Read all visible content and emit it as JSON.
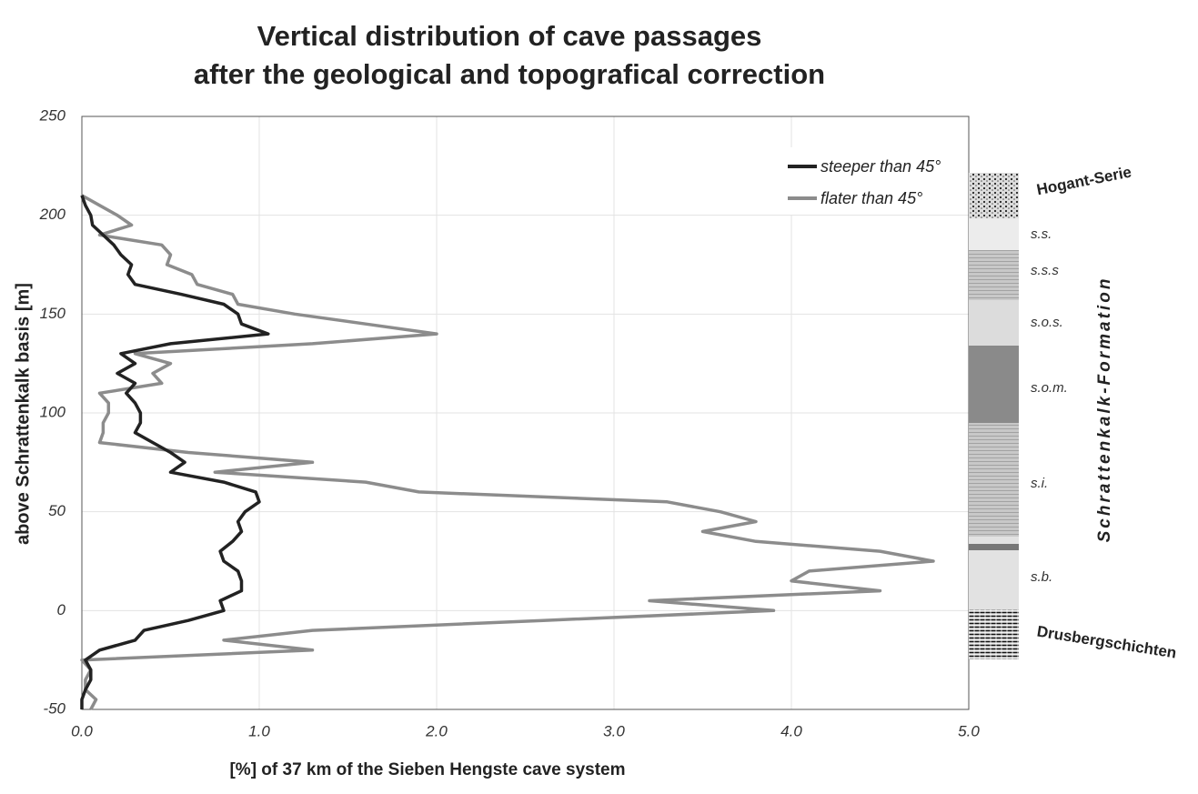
{
  "chart_data": {
    "type": "line",
    "orientation": "horizontal",
    "title": [
      "Vertical distribution of cave passages",
      "after the geological and topografical correction"
    ],
    "xlabel": "[%] of 37 km of the Sieben Hengste cave system",
    "ylabel": "above Schrattenkalk basis [m]",
    "y": [
      210,
      205,
      200,
      195,
      190,
      185,
      180,
      175,
      170,
      165,
      160,
      155,
      150,
      145,
      140,
      135,
      130,
      125,
      120,
      115,
      110,
      105,
      100,
      95,
      90,
      85,
      80,
      75,
      70,
      65,
      60,
      55,
      50,
      45,
      40,
      35,
      30,
      25,
      20,
      15,
      10,
      5,
      0,
      -5,
      -10,
      -15,
      -20,
      -25,
      -30,
      -35,
      -40,
      -45,
      -50
    ],
    "series": [
      {
        "name": "steeper than 45°",
        "color": "#222222",
        "values": [
          0.0,
          0.02,
          0.05,
          0.06,
          0.12,
          0.18,
          0.22,
          0.28,
          0.26,
          0.3,
          0.56,
          0.8,
          0.88,
          0.9,
          1.05,
          0.5,
          0.22,
          0.3,
          0.2,
          0.3,
          0.25,
          0.3,
          0.33,
          0.33,
          0.3,
          0.4,
          0.5,
          0.58,
          0.5,
          0.8,
          0.98,
          1.0,
          0.92,
          0.88,
          0.9,
          0.85,
          0.78,
          0.8,
          0.88,
          0.9,
          0.9,
          0.78,
          0.8,
          0.6,
          0.35,
          0.3,
          0.1,
          0.02,
          0.05,
          0.05,
          0.02,
          0.0,
          0.0
        ]
      },
      {
        "name": "flater than 45°",
        "color": "#8c8c8c",
        "values": [
          0.0,
          0.1,
          0.2,
          0.28,
          0.1,
          0.45,
          0.5,
          0.48,
          0.62,
          0.65,
          0.85,
          0.88,
          1.2,
          1.6,
          2.0,
          1.3,
          0.3,
          0.5,
          0.4,
          0.45,
          0.1,
          0.15,
          0.15,
          0.12,
          0.12,
          0.1,
          0.6,
          1.3,
          0.75,
          1.6,
          1.9,
          3.3,
          3.6,
          3.8,
          3.5,
          3.8,
          4.5,
          4.8,
          4.1,
          4.0,
          4.5,
          3.2,
          3.9,
          2.6,
          1.3,
          0.8,
          1.3,
          0.0,
          0.05,
          0.02,
          0.02,
          0.08,
          0.05
        ]
      }
    ],
    "xlim": [
      0,
      5
    ],
    "xticks": [
      {
        "value": 0,
        "label": "0.0"
      },
      {
        "value": 1,
        "label": "1.0"
      },
      {
        "value": 2,
        "label": "2.0"
      },
      {
        "value": 3,
        "label": "3.0"
      },
      {
        "value": 4,
        "label": "4.0"
      },
      {
        "value": 5,
        "label": "5.0"
      }
    ],
    "ylim": [
      -50,
      250
    ],
    "yticks": [
      250,
      200,
      150,
      100,
      50,
      0,
      -50
    ],
    "grid": true,
    "legend": "top-right",
    "column": {
      "formation": "Schrattenkalk-Formation",
      "top": "Hogant-Serie",
      "bottom": "Drusbergschichten",
      "units": [
        "s.s.",
        "s.s.s",
        "s.o.s.",
        "s.o.m.",
        "s.i.",
        "s.b."
      ]
    }
  }
}
